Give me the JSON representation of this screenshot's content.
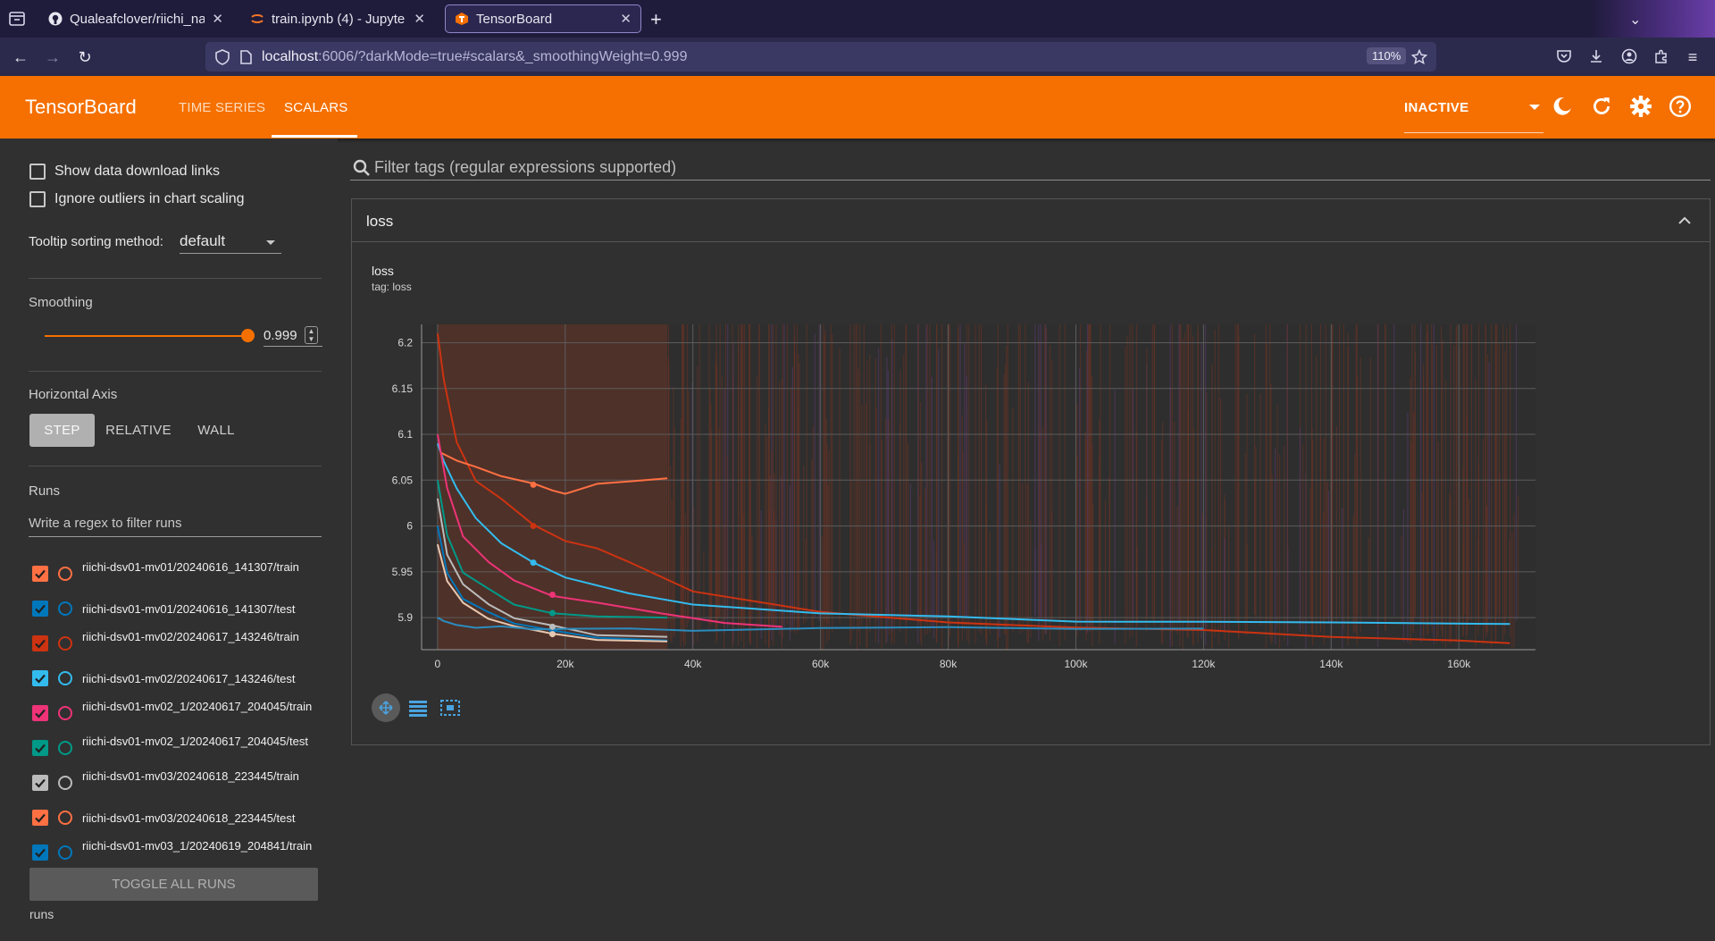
{
  "browser": {
    "tabs": [
      {
        "title": "Qualeafclover/riichi_na",
        "icon": "github-icon"
      },
      {
        "title": "train.ipynb (4) - Jupyte",
        "icon": "jupyter-icon"
      },
      {
        "title": "TensorBoard",
        "icon": "tensorboard-icon",
        "active": true
      }
    ],
    "url_host": "localhost",
    "url_rest": ":6006/?darkMode=true#scalars&_smoothingWeight=0.999",
    "zoom": "110%"
  },
  "header": {
    "logo": "TensorBoard",
    "tabs": [
      {
        "label": "TIME SERIES",
        "active": false
      },
      {
        "label": "SCALARS",
        "active": true
      }
    ],
    "status_select": "INACTIVE"
  },
  "sidebar": {
    "show_download_links": "Show data download links",
    "ignore_outliers": "Ignore outliers in chart scaling",
    "tooltip_label": "Tooltip sorting method:",
    "tooltip_value": "default",
    "smoothing_title": "Smoothing",
    "smoothing_value": "0.999",
    "smoothing_fraction": 0.999,
    "horizontal_axis_title": "Horizontal Axis",
    "axis_options": [
      "STEP",
      "RELATIVE",
      "WALL"
    ],
    "axis_selected": "STEP",
    "runs_title": "Runs",
    "runs_filter_placeholder": "Write a regex to filter runs",
    "runs": [
      {
        "name": "riichi-dsv01-mv01/20240616_141307/train",
        "color": "#ff7043"
      },
      {
        "name": "riichi-dsv01-mv01/20240616_141307/test",
        "color": "#0077bb"
      },
      {
        "name": "riichi-dsv01-mv02/20240617_143246/train",
        "color": "#cc3311"
      },
      {
        "name": "riichi-dsv01-mv02/20240617_143246/test",
        "color": "#33bbee"
      },
      {
        "name": "riichi-dsv01-mv02_1/20240617_204045/train",
        "color": "#ee3377"
      },
      {
        "name": "riichi-dsv01-mv02_1/20240617_204045/test",
        "color": "#009988"
      },
      {
        "name": "riichi-dsv01-mv03/20240618_223445/train",
        "color": "#bbbbbb"
      },
      {
        "name": "riichi-dsv01-mv03/20240618_223445/test",
        "color": "#ff7043"
      },
      {
        "name": "riichi-dsv01-mv03_1/20240619_204841/train",
        "color": "#0077bb"
      }
    ],
    "toggle_all": "TOGGLE ALL RUNS",
    "footer": "runs"
  },
  "main": {
    "filter_placeholder": "Filter tags (regular expressions supported)",
    "group_title": "loss",
    "card_title": "loss",
    "card_tag": "tag: loss"
  },
  "chart_data": {
    "type": "line",
    "title": "loss",
    "xlabel": "",
    "ylabel": "",
    "xlim": [
      -2500,
      172000
    ],
    "ylim": [
      5.865,
      6.22
    ],
    "x_ticks": [
      0,
      20000,
      40000,
      60000,
      80000,
      100000,
      120000,
      140000,
      160000
    ],
    "x_tick_labels": [
      "0",
      "20k",
      "40k",
      "60k",
      "80k",
      "100k",
      "120k",
      "140k",
      "160k"
    ],
    "y_ticks": [
      5.9,
      5.95,
      6.0,
      6.05,
      6.1,
      6.15,
      6.2
    ],
    "y_tick_labels": [
      "5.9",
      "5.95",
      "6",
      "6.05",
      "6.1",
      "6.15",
      "6.2"
    ],
    "grid": true,
    "series": [
      {
        "color": "#cc3311",
        "x": [
          0,
          1000,
          3000,
          6000,
          10000,
          15000,
          20000,
          25000,
          30000,
          40000,
          60000,
          80000,
          100000,
          120000,
          140000,
          160000,
          168000
        ],
        "y": [
          6.21,
          6.16,
          6.09,
          6.05,
          6.03,
          6.0,
          5.985,
          5.975,
          5.96,
          5.93,
          5.905,
          5.895,
          5.89,
          5.885,
          5.88,
          5.875,
          5.872
        ]
      },
      {
        "color": "#33bbee",
        "x": [
          0,
          1000,
          3000,
          6000,
          10000,
          15000,
          20000,
          30000,
          40000,
          60000,
          80000,
          100000,
          120000,
          140000,
          168000
        ],
        "y": [
          6.09,
          6.07,
          6.04,
          6.01,
          5.98,
          5.96,
          5.945,
          5.925,
          5.915,
          5.905,
          5.9,
          5.897,
          5.895,
          5.894,
          5.893
        ]
      },
      {
        "color": "#ff7043",
        "x": [
          500,
          3000,
          6000,
          10000,
          15000,
          18000,
          20000,
          25000,
          30000,
          36000
        ],
        "y": [
          6.08,
          6.07,
          6.065,
          6.055,
          6.045,
          6.04,
          6.035,
          6.045,
          6.05,
          6.052
        ]
      },
      {
        "color": "#ee3377",
        "x": [
          0,
          1500,
          4000,
          8000,
          12000,
          18000,
          25000,
          35000,
          45000,
          54000
        ],
        "y": [
          6.1,
          6.04,
          5.99,
          5.96,
          5.94,
          5.925,
          5.915,
          5.905,
          5.895,
          5.89
        ]
      },
      {
        "color": "#009988",
        "x": [
          0,
          1500,
          4000,
          8000,
          12000,
          18000,
          25000,
          36000
        ],
        "y": [
          6.05,
          5.99,
          5.95,
          5.93,
          5.915,
          5.905,
          5.9,
          5.9
        ]
      },
      {
        "color": "#0077bb",
        "x": [
          0,
          1500,
          4000,
          8000,
          12000,
          18000,
          25000,
          36000
        ],
        "y": [
          6.0,
          5.95,
          5.92,
          5.905,
          5.895,
          5.885,
          5.878,
          5.875
        ]
      },
      {
        "color": "#bbbbbb",
        "x": [
          0,
          1500,
          4000,
          8000,
          12000,
          18000,
          25000,
          36000
        ],
        "y": [
          6.03,
          5.97,
          5.935,
          5.915,
          5.9,
          5.89,
          5.882,
          5.879
        ]
      },
      {
        "color": "#e8c8b0",
        "x": [
          0,
          1500,
          4000,
          8000,
          12000,
          18000,
          25000,
          36000
        ],
        "y": [
          5.98,
          5.94,
          5.915,
          5.9,
          5.89,
          5.882,
          5.877,
          5.874
        ]
      },
      {
        "color": "#2b8cbe",
        "x": [
          0,
          1000,
          3000,
          6000,
          10000,
          15000,
          20000,
          30000,
          40000,
          60000,
          80000,
          100000,
          120000
        ],
        "y": [
          5.9,
          5.895,
          5.892,
          5.89,
          5.889,
          5.888,
          5.888,
          5.887,
          5.887,
          5.888,
          5.889,
          5.889,
          5.888
        ]
      }
    ]
  }
}
